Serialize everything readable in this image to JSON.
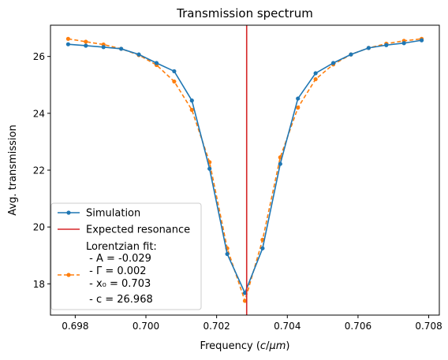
{
  "chart_data": {
    "type": "line",
    "title": "Transmission spectrum",
    "xlabel": "Frequency (c/μm)",
    "ylabel": "Avg. transmission",
    "xlim": [
      0.6973,
      0.7083
    ],
    "ylim": [
      16.9,
      27.1
    ],
    "xticks": [
      0.698,
      0.7,
      0.702,
      0.704,
      0.706,
      0.708
    ],
    "xtick_labels": [
      "0.698",
      "0.700",
      "0.702",
      "0.704",
      "0.706",
      "0.708"
    ],
    "yticks": [
      18,
      20,
      22,
      24,
      26
    ],
    "ytick_labels": [
      "18",
      "20",
      "22",
      "24",
      "26"
    ],
    "grid": false,
    "legend_position": "lower-left",
    "x": [
      0.6978,
      0.6983,
      0.6988,
      0.6993,
      0.6998,
      0.7003,
      0.7008,
      0.7013,
      0.7018,
      0.7023,
      0.7028,
      0.7033,
      0.7038,
      0.7043,
      0.7048,
      0.7053,
      0.7058,
      0.7063,
      0.7068,
      0.7073,
      0.7078
    ],
    "series": [
      {
        "name": "Simulation",
        "color": "#1f77b4",
        "style": "solid",
        "marker": "circle",
        "values": [
          26.43,
          26.38,
          26.33,
          26.27,
          26.07,
          25.77,
          25.48,
          24.45,
          22.05,
          19.05,
          17.68,
          19.25,
          22.22,
          24.52,
          25.41,
          25.77,
          26.07,
          26.3,
          26.4,
          26.47,
          26.57
        ]
      },
      {
        "name": "Lorentzian fit",
        "color": "#ff7f0e",
        "style": "dashed",
        "marker": "circle",
        "values": [
          26.62,
          26.52,
          26.42,
          26.27,
          26.05,
          25.7,
          25.12,
          24.12,
          22.28,
          19.25,
          17.4,
          19.55,
          22.45,
          24.2,
          25.2,
          25.72,
          26.07,
          26.3,
          26.45,
          26.55,
          26.62
        ]
      }
    ],
    "vline": {
      "x": 0.70285,
      "name": "Expected resonance",
      "color": "#d62728"
    },
    "legend": {
      "simulation_label": "Simulation",
      "resonance_label": "Expected resonance",
      "fit_lines": [
        "Lorentzian fit:",
        " - A = -0.029",
        " - Γ = 0.002",
        " - x₀ = 0.703",
        " - c = 26.968"
      ]
    }
  }
}
